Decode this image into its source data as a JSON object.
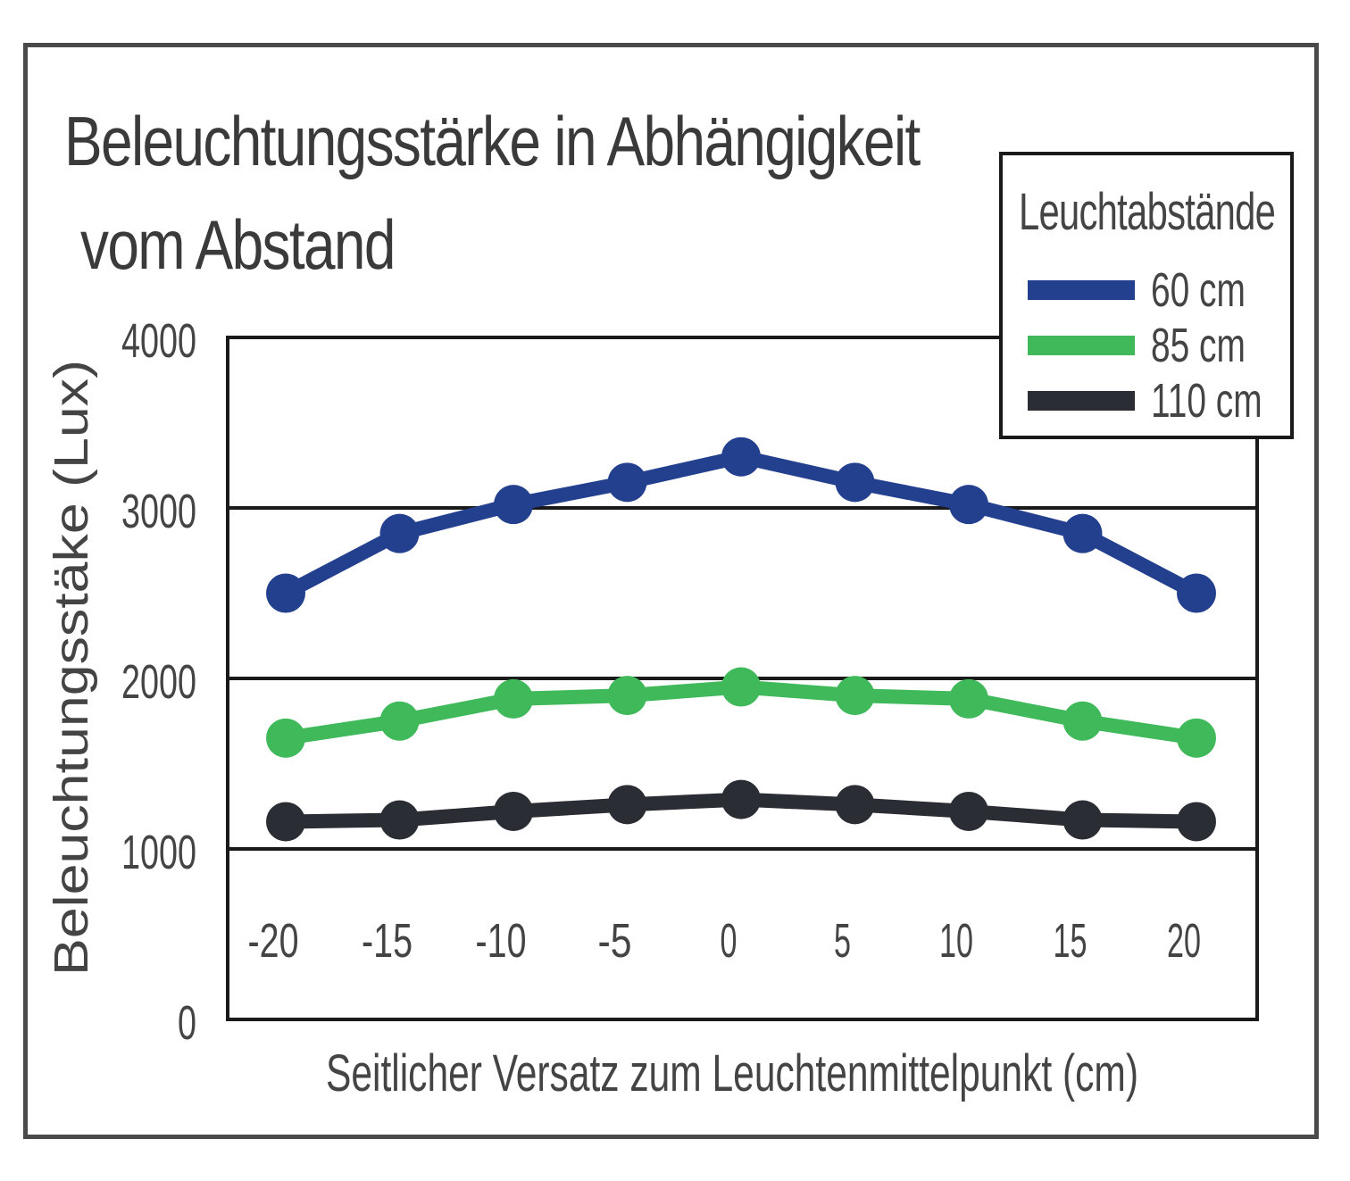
{
  "chart_data": {
    "type": "line",
    "title_line1": "Beleuchtungsstärke in Abhängigkeit",
    "title_line2": "vom Abstand",
    "xlabel": "Seitlicher Versatz zum Leuchtenmittelpunkt (cm)",
    "ylabel": "Beleuchtungsstäke (Lux)",
    "ylim": [
      0,
      4000
    ],
    "yticks": [
      0,
      1000,
      2000,
      3000,
      4000
    ],
    "x": [
      -20,
      -15,
      -10,
      -5,
      0,
      5,
      10,
      15,
      20
    ],
    "xtick_labels": [
      "-20",
      "-15",
      "-10",
      "-5",
      "0",
      "5",
      "10",
      "15",
      "20"
    ],
    "grid": "horizontal",
    "legend": {
      "title": "Leuchtabstände",
      "placement": "top-right"
    },
    "series": [
      {
        "name": "60 cm",
        "color": "#23408e",
        "values": [
          2500,
          2850,
          3020,
          3150,
          3300,
          3150,
          3020,
          2850,
          2500
        ]
      },
      {
        "name": "85 cm",
        "color": "#3fb95a",
        "values": [
          1650,
          1750,
          1880,
          1900,
          1950,
          1900,
          1880,
          1750,
          1650
        ]
      },
      {
        "name": "110 cm",
        "color": "#2a2d33",
        "values": [
          1160,
          1170,
          1220,
          1260,
          1290,
          1260,
          1220,
          1170,
          1160
        ]
      }
    ]
  }
}
